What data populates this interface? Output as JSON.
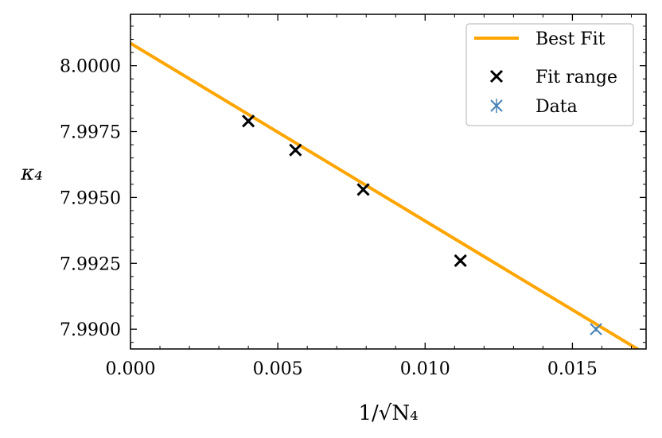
{
  "chart_data": {
    "type": "scatter",
    "xlabel": "1/√N₄",
    "ylabel": "κ₄",
    "xlim": [
      0.0,
      0.0175
    ],
    "ylim": [
      7.98925,
      8.00195
    ],
    "x_ticks": [
      0.0,
      0.005,
      0.01,
      0.015
    ],
    "x_tick_labels": [
      "0.000",
      "0.005",
      "0.010",
      "0.015"
    ],
    "y_ticks": [
      7.99,
      7.9925,
      7.995,
      7.9975,
      8.0
    ],
    "y_tick_labels": [
      "7.9900",
      "7.9925",
      "7.9950",
      "7.9975",
      "8.0000"
    ],
    "grid": false,
    "legend_position": "top-right",
    "series": [
      {
        "name": "Best Fit",
        "kind": "line",
        "color": "#FFA500",
        "x": [
          0.0,
          0.0175
        ],
        "y": [
          8.00085,
          7.98905
        ]
      },
      {
        "name": "Fit range",
        "kind": "marker-x",
        "color": "#000000",
        "x": [
          0.004,
          0.0056,
          0.0079,
          0.0112
        ],
        "y": [
          7.9979,
          7.9968,
          7.9953,
          7.9926
        ]
      },
      {
        "name": "Data",
        "kind": "marker-x-errorbar",
        "color": "#4682B4",
        "x": [
          0.004,
          0.0056,
          0.0079,
          0.0112,
          0.0158
        ],
        "y": [
          7.9979,
          7.9968,
          7.9953,
          7.9926,
          7.99
        ]
      }
    ]
  }
}
